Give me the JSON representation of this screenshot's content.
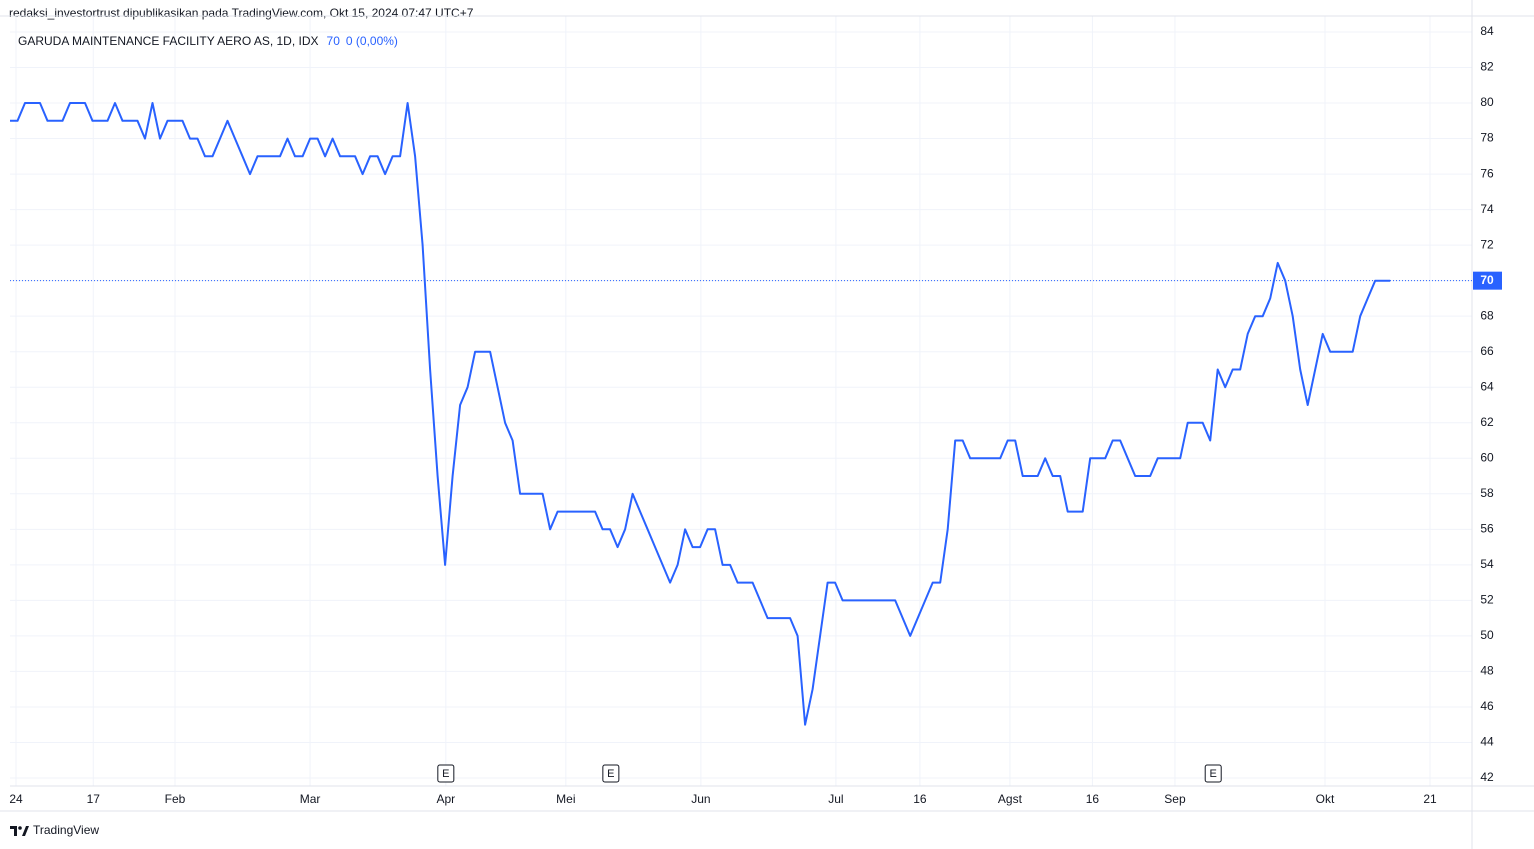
{
  "chart_data": {
    "type": "line",
    "publisher": "redaksi_investortrust dipublikasikan pada TradingView.com, Okt 15, 2024 07:47 UTC+7",
    "symbol": "GARUDA MAINTENANCE FACILITY AERO AS, 1D, IDX",
    "last_price": 70,
    "change": "0 (0,00%)",
    "brand": "TradingView",
    "color": "#2962ff",
    "values": [
      79,
      79,
      80,
      80,
      80,
      79,
      79,
      79,
      80,
      80,
      80,
      79,
      79,
      79,
      80,
      79,
      79,
      79,
      78,
      80,
      78,
      79,
      79,
      79,
      78,
      78,
      77,
      77,
      78,
      79,
      78,
      77,
      76,
      77,
      77,
      77,
      77,
      78,
      77,
      77,
      78,
      78,
      77,
      78,
      77,
      77,
      77,
      76,
      77,
      77,
      76,
      77,
      77,
      80,
      77,
      72,
      65,
      59,
      54,
      59,
      63,
      64,
      66,
      66,
      66,
      64,
      62,
      61,
      58,
      58,
      58,
      58,
      56,
      57,
      57,
      57,
      57,
      57,
      57,
      56,
      56,
      55,
      56,
      58,
      57,
      56,
      55,
      54,
      53,
      54,
      56,
      55,
      55,
      56,
      56,
      54,
      54,
      53,
      53,
      53,
      52,
      51,
      51,
      51,
      51,
      50,
      45,
      47,
      50,
      53,
      53,
      52,
      52,
      52,
      52,
      52,
      52,
      52,
      52,
      51,
      50,
      51,
      52,
      53,
      53,
      56,
      61,
      61,
      60,
      60,
      60,
      60,
      60,
      61,
      61,
      59,
      59,
      59,
      60,
      59,
      59,
      57,
      57,
      57,
      60,
      60,
      60,
      61,
      61,
      60,
      59,
      59,
      59,
      60,
      60,
      60,
      60,
      62,
      62,
      62,
      61,
      65,
      64,
      65,
      65,
      67,
      68,
      68,
      69,
      71,
      70,
      68,
      65,
      63,
      65,
      67,
      66,
      66,
      66,
      66,
      68,
      69,
      70,
      70,
      70
    ],
    "xlim": [
      0,
      194.9
    ],
    "xticks": [
      {
        "value": 0.8,
        "label": "24"
      },
      {
        "value": 11.1,
        "label": "17"
      },
      {
        "value": 22,
        "label": "Feb"
      },
      {
        "value": 40,
        "label": "Mar"
      },
      {
        "value": 58.1,
        "label": "Apr"
      },
      {
        "value": 74.1,
        "label": "Mei"
      },
      {
        "value": 92.1,
        "label": "Jun"
      },
      {
        "value": 110.1,
        "label": "Jul"
      },
      {
        "value": 121.3,
        "label": "16"
      },
      {
        "value": 133.3,
        "label": "Agst"
      },
      {
        "value": 144.3,
        "label": "16"
      },
      {
        "value": 155.3,
        "label": "Sep"
      },
      {
        "value": 175.3,
        "label": "Okt"
      },
      {
        "value": 189.3,
        "label": "21"
      }
    ],
    "ylim": [
      41.55,
      84.9
    ],
    "yticks": [
      42,
      44,
      46,
      48,
      50,
      52,
      54,
      56,
      58,
      60,
      62,
      64,
      66,
      68,
      70,
      72,
      74,
      76,
      78,
      80,
      82,
      84
    ],
    "grid": true,
    "events": [
      {
        "x": 58.1,
        "label": "E"
      },
      {
        "x": 80.1,
        "label": "E"
      },
      {
        "x": 160.4,
        "label": "E"
      }
    ]
  }
}
